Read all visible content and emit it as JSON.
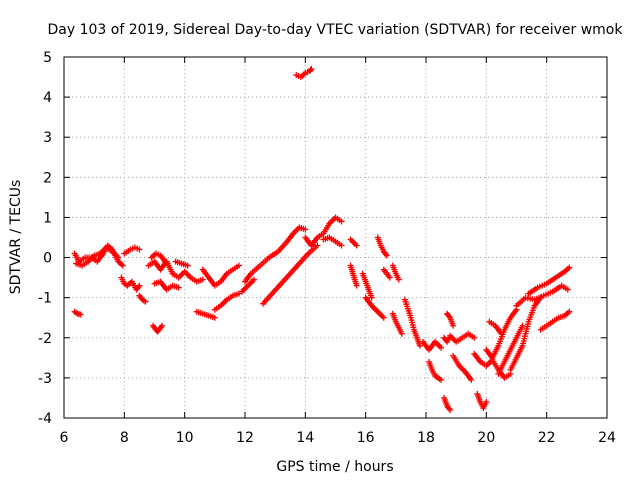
{
  "chart_data": {
    "type": "scatter",
    "title": "Day 103 of 2019, Sidereal Day-to-day VTEC variation (SDTVAR) for receiver wmok",
    "xlabel": "GPS time / hours",
    "ylabel": "SDTVAR / TECUs",
    "xlim": [
      6,
      24
    ],
    "ylim": [
      -4,
      5
    ],
    "xticks": [
      6,
      8,
      10,
      12,
      14,
      16,
      18,
      20,
      22,
      24
    ],
    "yticks": [
      -4,
      -3,
      -2,
      -1,
      0,
      1,
      2,
      3,
      4,
      5
    ],
    "grid": true,
    "marker": "+",
    "color": "#ff0000",
    "series": [
      {
        "name": "a",
        "x": [
          6.35,
          6.5,
          6.7,
          6.9,
          7.1,
          7.3,
          7.45,
          7.6,
          7.8,
          7.95
        ],
        "y": [
          0.1,
          -0.1,
          0.0,
          0.0,
          -0.1,
          0.1,
          0.3,
          0.2,
          -0.1,
          -0.2
        ]
      },
      {
        "name": "b",
        "x": [
          6.4,
          6.6,
          6.8,
          7.0,
          7.2,
          7.4,
          7.6,
          7.8
        ],
        "y": [
          -0.15,
          -0.2,
          -0.1,
          0.05,
          0.1,
          0.25,
          0.15,
          0.0
        ]
      },
      {
        "name": "c",
        "x": [
          6.35,
          6.45,
          6.55
        ],
        "y": [
          -1.35,
          -1.4,
          -1.42
        ]
      },
      {
        "name": "d",
        "x": [
          7.9,
          8.0,
          8.1,
          8.25,
          8.4,
          8.5
        ],
        "y": [
          -0.5,
          -0.65,
          -0.7,
          -0.6,
          -0.8,
          -0.7
        ]
      },
      {
        "name": "e",
        "x": [
          8.0,
          8.2,
          8.35,
          8.5
        ],
        "y": [
          0.1,
          0.2,
          0.25,
          0.2
        ]
      },
      {
        "name": "f",
        "x": [
          8.5,
          8.6,
          8.7
        ],
        "y": [
          -0.95,
          -1.05,
          -1.1
        ]
      },
      {
        "name": "g",
        "x": [
          8.8,
          9.0,
          9.2,
          9.4,
          9.6
        ],
        "y": [
          -0.2,
          -0.1,
          -0.3,
          -0.1,
          -0.4
        ]
      },
      {
        "name": "h",
        "x": [
          8.9,
          9.05,
          9.2,
          9.35
        ],
        "y": [
          0.0,
          0.1,
          0.05,
          -0.1
        ]
      },
      {
        "name": "i",
        "x": [
          9.0,
          9.2,
          9.4,
          9.6,
          9.8
        ],
        "y": [
          -0.65,
          -0.6,
          -0.8,
          -0.7,
          -0.75
        ]
      },
      {
        "name": "j",
        "x": [
          8.95,
          9.1,
          9.25
        ],
        "y": [
          -1.7,
          -1.85,
          -1.7
        ]
      },
      {
        "name": "k",
        "x": [
          9.6,
          9.8,
          10.0,
          10.2,
          10.4,
          10.6
        ],
        "y": [
          -0.4,
          -0.5,
          -0.35,
          -0.5,
          -0.6,
          -0.55
        ]
      },
      {
        "name": "l",
        "x": [
          9.7,
          9.9,
          10.1
        ],
        "y": [
          -0.1,
          -0.15,
          -0.2
        ]
      },
      {
        "name": "m",
        "x": [
          10.4,
          10.6,
          10.8,
          11.0
        ],
        "y": [
          -1.35,
          -1.4,
          -1.45,
          -1.5
        ]
      },
      {
        "name": "n",
        "x": [
          10.6,
          10.8,
          11.0,
          11.2,
          11.4,
          11.6,
          11.8
        ],
        "y": [
          -0.3,
          -0.5,
          -0.7,
          -0.6,
          -0.4,
          -0.3,
          -0.2
        ]
      },
      {
        "name": "o",
        "x": [
          11.0,
          11.2,
          11.4,
          11.6,
          11.8
        ],
        "y": [
          -1.3,
          -1.2,
          -1.05,
          -0.95,
          -0.9
        ]
      },
      {
        "name": "p",
        "x": [
          12.0,
          12.2,
          12.5,
          12.8,
          13.1,
          13.4,
          13.6,
          13.8,
          14.0
        ],
        "y": [
          -0.6,
          -0.4,
          -0.2,
          0.0,
          0.15,
          0.4,
          0.6,
          0.75,
          0.7
        ]
      },
      {
        "name": "q",
        "x": [
          11.9,
          12.1,
          12.3
        ],
        "y": [
          -0.85,
          -0.7,
          -0.55
        ]
      },
      {
        "name": "r",
        "x": [
          12.6,
          12.9,
          13.2,
          13.5,
          13.8,
          14.1,
          14.4
        ],
        "y": [
          -1.15,
          -0.9,
          -0.65,
          -0.4,
          -0.15,
          0.1,
          0.3
        ]
      },
      {
        "name": "s",
        "x": [
          14.0,
          14.2,
          14.4,
          14.6,
          14.8,
          15.0,
          15.2
        ],
        "y": [
          0.5,
          0.3,
          0.5,
          0.6,
          0.85,
          1.0,
          0.9
        ]
      },
      {
        "name": "t",
        "x": [
          14.6,
          14.8,
          15.0,
          15.2
        ],
        "y": [
          0.45,
          0.5,
          0.4,
          0.3
        ]
      },
      {
        "name": "u",
        "x": [
          13.7,
          13.85,
          14.0,
          14.15,
          14.2
        ],
        "y": [
          4.55,
          4.5,
          4.6,
          4.65,
          4.7
        ]
      },
      {
        "name": "v",
        "x": [
          15.5,
          15.7
        ],
        "y": [
          0.45,
          0.3
        ]
      },
      {
        "name": "w",
        "x": [
          15.5,
          15.6,
          15.7
        ],
        "y": [
          -0.2,
          -0.45,
          -0.7
        ]
      },
      {
        "name": "x",
        "x": [
          15.9,
          16.0,
          16.1,
          16.2
        ],
        "y": [
          -0.4,
          -0.6,
          -0.8,
          -1.0
        ]
      },
      {
        "name": "y",
        "x": [
          16.4,
          16.5,
          16.6,
          16.7
        ],
        "y": [
          0.5,
          0.3,
          0.15,
          0.05
        ]
      },
      {
        "name": "z",
        "x": [
          16.0,
          16.2,
          16.4,
          16.6
        ],
        "y": [
          -1.0,
          -1.2,
          -1.35,
          -1.5
        ]
      },
      {
        "name": "aa",
        "x": [
          16.6,
          16.8
        ],
        "y": [
          -0.3,
          -0.5
        ]
      },
      {
        "name": "ab",
        "x": [
          16.9,
          17.0,
          17.1
        ],
        "y": [
          -0.2,
          -0.4,
          -0.55
        ]
      },
      {
        "name": "ac",
        "x": [
          16.9,
          17.0,
          17.1,
          17.2
        ],
        "y": [
          -1.4,
          -1.6,
          -1.75,
          -1.9
        ]
      },
      {
        "name": "ad",
        "x": [
          17.3,
          17.5,
          17.6,
          17.7,
          17.8
        ],
        "y": [
          -1.05,
          -1.5,
          -1.8,
          -2.0,
          -2.2
        ]
      },
      {
        "name": "ae",
        "x": [
          17.9,
          18.1,
          18.3,
          18.5
        ],
        "y": [
          -2.1,
          -2.3,
          -2.1,
          -2.25
        ]
      },
      {
        "name": "af",
        "x": [
          18.1,
          18.2,
          18.3,
          18.4,
          18.5
        ],
        "y": [
          -2.6,
          -2.8,
          -2.95,
          -3.0,
          -3.05
        ]
      },
      {
        "name": "ag",
        "x": [
          18.6,
          18.7,
          18.8
        ],
        "y": [
          -3.5,
          -3.7,
          -3.8
        ]
      },
      {
        "name": "ah",
        "x": [
          18.7,
          18.8,
          18.9
        ],
        "y": [
          -1.4,
          -1.5,
          -1.7
        ]
      },
      {
        "name": "ai",
        "x": [
          18.6,
          18.7,
          18.8,
          19.0,
          19.2,
          19.4,
          19.6
        ],
        "y": [
          -2.0,
          -2.1,
          -1.95,
          -2.1,
          -2.0,
          -1.9,
          -2.0
        ]
      },
      {
        "name": "aj",
        "x": [
          18.9,
          19.1,
          19.3,
          19.5
        ],
        "y": [
          -2.45,
          -2.7,
          -2.85,
          -3.05
        ]
      },
      {
        "name": "ak",
        "x": [
          19.6,
          19.8,
          20.0,
          20.2,
          20.4,
          20.6,
          20.8
        ],
        "y": [
          -2.4,
          -2.6,
          -2.7,
          -2.55,
          -2.8,
          -3.0,
          -2.9
        ]
      },
      {
        "name": "al",
        "x": [
          19.7,
          19.8,
          19.9,
          20.0
        ],
        "y": [
          -3.4,
          -3.6,
          -3.75,
          -3.6
        ]
      },
      {
        "name": "am",
        "x": [
          20.0,
          20.2,
          20.4,
          20.6,
          20.8,
          21.0
        ],
        "y": [
          -2.3,
          -2.5,
          -2.2,
          -1.8,
          -1.5,
          -1.3
        ]
      },
      {
        "name": "an",
        "x": [
          20.4,
          20.6,
          20.8,
          21.0,
          21.2
        ],
        "y": [
          -2.9,
          -2.6,
          -2.3,
          -2.0,
          -1.7
        ]
      },
      {
        "name": "ao",
        "x": [
          20.8,
          21.0,
          21.2,
          21.4,
          21.6,
          21.8
        ],
        "y": [
          -2.8,
          -2.5,
          -2.2,
          -1.6,
          -1.2,
          -1.0
        ]
      },
      {
        "name": "ap",
        "x": [
          21.0,
          21.3,
          21.6,
          21.9,
          22.2,
          22.5,
          22.7
        ],
        "y": [
          -1.2,
          -1.0,
          -1.05,
          -0.95,
          -0.85,
          -0.7,
          -0.8
        ]
      },
      {
        "name": "aq",
        "x": [
          21.4,
          21.7,
          22.0,
          22.3,
          22.6,
          22.75
        ],
        "y": [
          -0.9,
          -0.75,
          -0.65,
          -0.5,
          -0.35,
          -0.25
        ]
      },
      {
        "name": "ar",
        "x": [
          21.8,
          22.0,
          22.2,
          22.4,
          22.6,
          22.75
        ],
        "y": [
          -1.8,
          -1.7,
          -1.6,
          -1.5,
          -1.45,
          -1.35
        ]
      },
      {
        "name": "as",
        "x": [
          20.1,
          20.3,
          20.5
        ],
        "y": [
          -1.6,
          -1.7,
          -1.9
        ]
      }
    ]
  }
}
